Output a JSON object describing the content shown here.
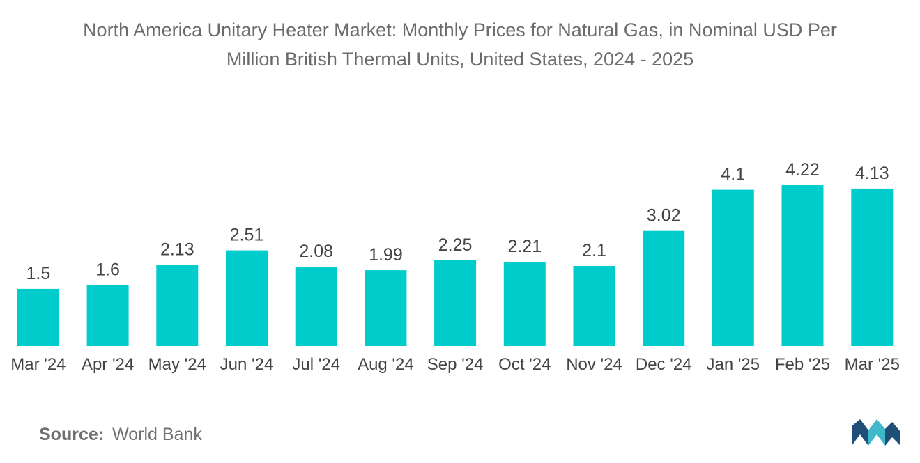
{
  "chart_data": {
    "type": "bar",
    "title_lines": [
      "North America Unitary Heater Market: Monthly Prices for Natural Gas, in Nominal USD Per",
      "Million British Thermal Units, United States, 2024 - 2025"
    ],
    "categories": [
      "Mar '24",
      "Apr '24",
      "May '24",
      "Jun '24",
      "Jul '24",
      "Aug '24",
      "Sep '24",
      "Oct '24",
      "Nov '24",
      "Dec '24",
      "Jan '25",
      "Feb '25",
      "Mar '25"
    ],
    "values": [
      1.5,
      1.6,
      2.13,
      2.51,
      2.08,
      1.99,
      2.25,
      2.21,
      2.1,
      3.02,
      4.1,
      4.22,
      4.13
    ],
    "value_labels": [
      "1.5",
      "1.6",
      "2.13",
      "2.51",
      "2.08",
      "1.99",
      "2.25",
      "2.21",
      "2.1",
      "3.02",
      "4.1",
      "4.22",
      "4.13"
    ],
    "xlabel": "",
    "ylabel": "",
    "ylim": [
      0,
      4.22
    ],
    "grid": false,
    "legend": "none",
    "bar_color": "#00cccc"
  },
  "source": {
    "label": "Source:",
    "text": "World Bank"
  },
  "colors": {
    "title": "#6b6b6b",
    "label": "#444444",
    "logo_dark": "#1f4e79",
    "logo_light": "#3fb8c9"
  }
}
